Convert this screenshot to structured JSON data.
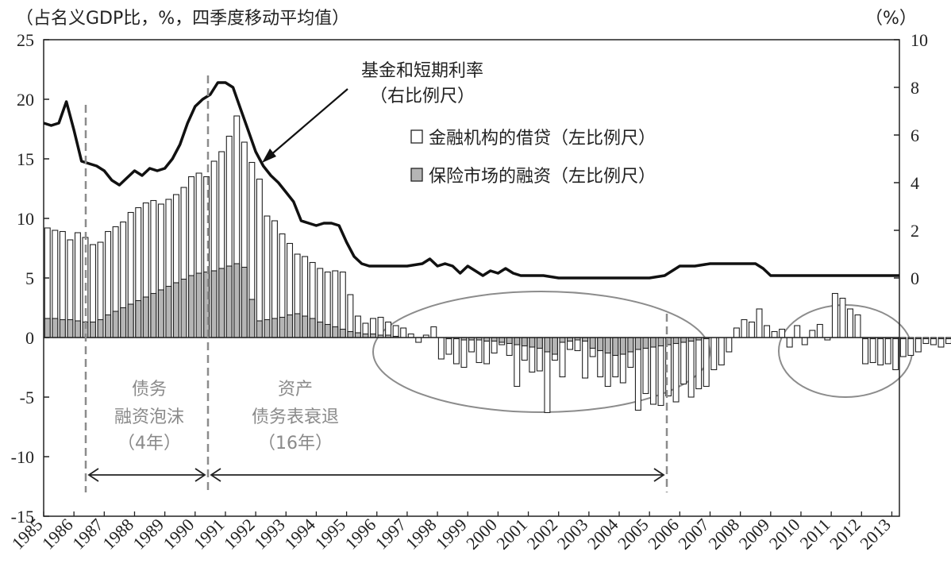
{
  "chart_data": {
    "type": "bar",
    "left_axis_caption": "（占名义GDP比，%，四季度移动平均值）",
    "right_axis_caption": "（%）",
    "left_ylim": [
      -15,
      25
    ],
    "left_ticks": [
      "25",
      "20",
      "15",
      "10",
      "5",
      "0",
      "-5",
      "-10",
      "-15"
    ],
    "right_ylim": [
      -10,
      10
    ],
    "right_ticks": [
      "10",
      "8",
      "6",
      "4",
      "2",
      "0"
    ],
    "xlim": [
      1985,
      2013.25
    ],
    "x_ticks": [
      "1985",
      "1986",
      "1987",
      "1988",
      "1989",
      "1990",
      "1991",
      "1992",
      "1993",
      "1994",
      "1995",
      "1996",
      "1997",
      "1998",
      "1999",
      "2000",
      "2001",
      "2002",
      "2003",
      "2004",
      "2005",
      "2006",
      "2007",
      "2008",
      "2009",
      "2010",
      "2011",
      "2012",
      "2013"
    ],
    "legend": [
      {
        "name": "金融机构的借贷（左比例尺）",
        "color": "#ffffff"
      },
      {
        "name": "保险市场的融资（左比例尺）",
        "color": "#b5b5b5"
      }
    ],
    "series": [
      {
        "name": "金融机构的借贷（左比例尺）",
        "axis": "left",
        "x_start": 1985,
        "step": 0.25,
        "values": [
          9.2,
          9.0,
          8.9,
          8.2,
          8.8,
          8.4,
          7.8,
          8.0,
          8.9,
          9.3,
          9.7,
          10.5,
          10.9,
          11.3,
          11.5,
          11.2,
          11.6,
          12.0,
          12.6,
          13.5,
          13.8,
          13.5,
          14.8,
          15.6,
          16.9,
          18.6,
          16.4,
          14.7,
          13.3,
          10.2,
          9.8,
          8.7,
          7.9,
          7.0,
          6.8,
          6.3,
          5.8,
          5.5,
          5.6,
          5.5,
          3.6,
          1.8,
          1.2,
          1.6,
          1.7,
          1.3,
          1.0,
          0.8,
          0.3,
          -0.4,
          0.2,
          0.9,
          -1.8,
          -1.4,
          -2.2,
          -2.5,
          -1.2,
          -2.1,
          -2.2,
          -1.3,
          -0.6,
          -1.5,
          -4.1,
          -1.9,
          -2.9,
          -2.8,
          -6.3,
          -1.9,
          -3.3,
          -1.0,
          -1.1,
          -3.4,
          -1.6,
          -3.3,
          -4.1,
          -3.3,
          -3.8,
          -2.5,
          -6.1,
          -4.7,
          -5.6,
          -5.7,
          -4.9,
          -5.4,
          -3.9,
          -5.0,
          -4.3,
          -4.1,
          -2.7,
          -2.3,
          -1.2,
          0.8,
          1.5,
          1.3,
          2.4,
          1.0,
          0.5,
          0.7,
          -0.8,
          1.0,
          -0.6,
          0.6,
          1.1,
          -0.2,
          3.7,
          3.3,
          2.4,
          1.9,
          -2.2,
          -2.1,
          -2.3,
          -2.2,
          -2.7,
          -1.6,
          -1.5,
          -1.2,
          -0.5,
          -0.6,
          -0.8,
          -0.5,
          -0.4,
          1.0,
          2.0,
          1.6,
          1.4,
          0.5
        ]
      },
      {
        "name": "保险市场的融资（左比例尺）",
        "axis": "left",
        "x_start": 1985,
        "step": 0.25,
        "values": [
          1.6,
          1.6,
          1.5,
          1.5,
          1.4,
          1.3,
          1.3,
          1.5,
          1.9,
          2.2,
          2.5,
          2.8,
          3.1,
          3.4,
          3.7,
          4.0,
          4.3,
          4.6,
          4.9,
          5.2,
          5.4,
          5.5,
          5.6,
          5.8,
          6.0,
          6.2,
          5.9,
          3.2,
          1.4,
          1.5,
          1.6,
          1.7,
          1.9,
          2.0,
          1.8,
          1.6,
          1.3,
          1.1,
          0.9,
          0.7,
          0.5,
          0.4,
          0.3,
          0.3,
          0.2,
          0.2,
          0.1,
          0.0,
          0.0,
          0.0,
          0.0,
          0.0,
          0.0,
          -0.1,
          -0.1,
          -0.2,
          -0.2,
          -0.2,
          -0.3,
          -0.3,
          -0.4,
          -0.5,
          -0.6,
          -0.7,
          -0.8,
          -0.9,
          -1.2,
          -1.4,
          -0.4,
          -0.3,
          -0.2,
          -0.3,
          -0.9,
          -1.1,
          -1.3,
          -1.5,
          -1.4,
          -1.2,
          -1.0,
          -0.9,
          -0.8,
          -0.7,
          -0.6,
          -0.5,
          -0.4,
          -0.3,
          -0.2,
          -0.1,
          0.0,
          0.0,
          0.0,
          0.0,
          0.0,
          0.0,
          0.0,
          0.0,
          0.0,
          0.0,
          0.0,
          0.0,
          0.0,
          0.0,
          0.0,
          0.0,
          0.0,
          0.0,
          0.0,
          0.0,
          -0.1,
          -0.1,
          -0.1,
          -0.1,
          -0.1,
          -0.1,
          -0.1,
          -0.1,
          -0.1,
          -0.1,
          -0.1,
          -0.1,
          -0.1,
          -0.1,
          -0.1,
          -0.1,
          -0.1,
          -0.1
        ]
      },
      {
        "name": "基金和短期利率（右比例尺）",
        "type": "line",
        "axis": "right",
        "x": [
          1985,
          1985.25,
          1985.5,
          1985.75,
          1986,
          1986.25,
          1986.5,
          1986.75,
          1987,
          1987.25,
          1987.5,
          1987.75,
          1988,
          1988.25,
          1988.5,
          1988.75,
          1989,
          1989.25,
          1989.5,
          1989.75,
          1990,
          1990.25,
          1990.5,
          1990.75,
          1991,
          1991.25,
          1991.5,
          1991.75,
          1992,
          1992.25,
          1992.5,
          1992.75,
          1993,
          1993.25,
          1993.5,
          1993.75,
          1994,
          1994.25,
          1994.5,
          1994.75,
          1995,
          1995.25,
          1995.5,
          1995.75,
          1996,
          1996.5,
          1997,
          1997.5,
          1997.75,
          1998,
          1998.25,
          1998.5,
          1998.75,
          1999,
          1999.25,
          1999.5,
          1999.75,
          2000,
          2000.25,
          2000.5,
          2000.75,
          2001,
          2001.5,
          2002,
          2003,
          2004,
          2005,
          2005.5,
          2006,
          2006.5,
          2007,
          2007.5,
          2008,
          2008.25,
          2008.5,
          2008.75,
          2009,
          2009.5,
          2010,
          2011,
          2012,
          2013.25
        ],
        "values": [
          6.5,
          6.4,
          6.5,
          7.4,
          6.2,
          4.9,
          4.8,
          4.7,
          4.5,
          4.1,
          3.9,
          4.2,
          4.5,
          4.3,
          4.6,
          4.5,
          4.6,
          5.0,
          5.6,
          6.5,
          7.2,
          7.5,
          7.7,
          8.2,
          8.2,
          8.0,
          7.1,
          6.2,
          5.3,
          4.7,
          4.3,
          4.0,
          3.6,
          3.2,
          2.4,
          2.3,
          2.2,
          2.3,
          2.3,
          2.2,
          1.5,
          0.9,
          0.6,
          0.5,
          0.5,
          0.5,
          0.5,
          0.6,
          0.8,
          0.5,
          0.6,
          0.5,
          0.2,
          0.5,
          0.3,
          0.1,
          0.3,
          0.2,
          0.4,
          0.2,
          0.1,
          0.1,
          0.1,
          0.0,
          0.0,
          0.0,
          0.0,
          0.1,
          0.5,
          0.5,
          0.6,
          0.6,
          0.6,
          0.6,
          0.6,
          0.4,
          0.1,
          0.1,
          0.1,
          0.1,
          0.1,
          0.1
        ]
      }
    ],
    "annotations": {
      "line_label": [
        "基金和短期利率",
        "（右比例尺）"
      ],
      "bubble": [
        "债务",
        "融资泡沫",
        "（4年）"
      ],
      "recession": [
        "资产",
        "债务表衰退",
        "（16年）"
      ]
    }
  }
}
